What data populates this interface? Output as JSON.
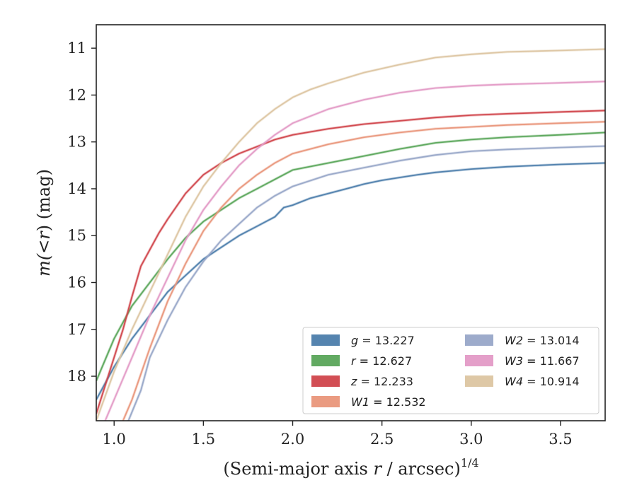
{
  "chart_data": {
    "type": "line",
    "xlabel": "(Semi-major axis r / arcsec)^{1/4}",
    "xlabel_main": "(Semi-major axis ",
    "xlabel_var": "r",
    "xlabel_rest": " / arcsec)",
    "xlabel_sup": "1/4",
    "ylabel": "m(<r) (mag)",
    "ylabel_pre": "m(<",
    "ylabel_var": "r",
    "ylabel_post": ") (mag)",
    "xlim": [
      0.9,
      3.75
    ],
    "ylim": [
      18.95,
      10.5
    ],
    "y_inverted": true,
    "grid": false,
    "xticks": [
      1.0,
      1.5,
      2.0,
      2.5,
      3.0,
      3.5
    ],
    "xtick_labels": [
      "1.0",
      "1.5",
      "2.0",
      "2.5",
      "3.0",
      "3.5"
    ],
    "yticks": [
      11,
      12,
      13,
      14,
      15,
      16,
      17,
      18
    ],
    "ytick_labels": [
      "11",
      "12",
      "13",
      "14",
      "15",
      "16",
      "17",
      "18"
    ],
    "legend_position": "lower-right",
    "series": [
      {
        "name": "g = 13.227",
        "band": "g",
        "mag": "13.227",
        "color": "#4c7dab",
        "x": [
          0.9,
          1.0,
          1.1,
          1.2,
          1.3,
          1.4,
          1.5,
          1.6,
          1.7,
          1.8,
          1.9,
          1.95,
          2.0,
          2.1,
          2.2,
          2.3,
          2.4,
          2.5,
          2.6,
          2.7,
          2.8,
          3.0,
          3.2,
          3.5,
          3.75
        ],
        "y": [
          18.5,
          17.8,
          17.2,
          16.7,
          16.2,
          15.85,
          15.5,
          15.25,
          15.0,
          14.8,
          14.6,
          14.4,
          14.35,
          14.2,
          14.1,
          14.0,
          13.9,
          13.82,
          13.76,
          13.7,
          13.65,
          13.58,
          13.53,
          13.48,
          13.45
        ]
      },
      {
        "name": "r = 12.627",
        "band": "r",
        "mag": "12.627",
        "color": "#5aa55a",
        "x": [
          0.9,
          1.0,
          1.1,
          1.2,
          1.3,
          1.4,
          1.5,
          1.6,
          1.7,
          1.8,
          1.9,
          2.0,
          2.2,
          2.4,
          2.6,
          2.8,
          3.0,
          3.2,
          3.5,
          3.75
        ],
        "y": [
          18.1,
          17.2,
          16.5,
          16.0,
          15.5,
          15.05,
          14.7,
          14.45,
          14.2,
          14.0,
          13.8,
          13.6,
          13.45,
          13.3,
          13.15,
          13.02,
          12.95,
          12.9,
          12.85,
          12.8
        ]
      },
      {
        "name": "z = 12.233",
        "band": "z",
        "mag": "12.233",
        "color": "#d0444b",
        "x": [
          0.9,
          1.0,
          1.05,
          1.1,
          1.15,
          1.2,
          1.25,
          1.3,
          1.4,
          1.5,
          1.6,
          1.7,
          1.8,
          1.9,
          2.0,
          2.2,
          2.4,
          2.6,
          2.8,
          3.0,
          3.2,
          3.5,
          3.75
        ],
        "y": [
          18.8,
          17.6,
          17.0,
          16.3,
          15.65,
          15.3,
          14.95,
          14.65,
          14.1,
          13.7,
          13.45,
          13.25,
          13.1,
          12.95,
          12.85,
          12.72,
          12.62,
          12.55,
          12.48,
          12.43,
          12.4,
          12.36,
          12.33
        ]
      },
      {
        "name": "W1 = 12.532",
        "band": "W1",
        "mag": "12.532",
        "color": "#e9967a",
        "x": [
          1.05,
          1.1,
          1.2,
          1.3,
          1.4,
          1.5,
          1.6,
          1.7,
          1.8,
          1.9,
          2.0,
          2.2,
          2.4,
          2.6,
          2.8,
          3.0,
          3.2,
          3.5,
          3.75
        ],
        "y": [
          18.95,
          18.5,
          17.4,
          16.4,
          15.6,
          14.9,
          14.4,
          14.0,
          13.7,
          13.45,
          13.25,
          13.05,
          12.9,
          12.8,
          12.72,
          12.68,
          12.64,
          12.6,
          12.57
        ]
      },
      {
        "name": "W2 = 13.014",
        "band": "W2",
        "mag": "13.014",
        "color": "#98a6c8",
        "x": [
          1.08,
          1.15,
          1.2,
          1.3,
          1.4,
          1.5,
          1.6,
          1.7,
          1.8,
          1.9,
          2.0,
          2.2,
          2.4,
          2.6,
          2.8,
          3.0,
          3.2,
          3.5,
          3.75
        ],
        "y": [
          18.95,
          18.3,
          17.6,
          16.8,
          16.1,
          15.55,
          15.1,
          14.75,
          14.4,
          14.15,
          13.95,
          13.7,
          13.55,
          13.4,
          13.28,
          13.2,
          13.16,
          13.12,
          13.09
        ]
      },
      {
        "name": "W3 = 11.667",
        "band": "W3",
        "mag": "11.667",
        "color": "#e39ac6",
        "x": [
          0.95,
          1.0,
          1.1,
          1.2,
          1.3,
          1.4,
          1.5,
          1.6,
          1.7,
          1.8,
          1.9,
          2.0,
          2.1,
          2.2,
          2.4,
          2.6,
          2.8,
          3.0,
          3.2,
          3.5,
          3.75
        ],
        "y": [
          18.95,
          18.5,
          17.6,
          16.7,
          15.9,
          15.1,
          14.45,
          13.95,
          13.5,
          13.15,
          12.85,
          12.6,
          12.45,
          12.3,
          12.1,
          11.95,
          11.85,
          11.8,
          11.77,
          11.74,
          11.71
        ]
      },
      {
        "name": "W4 = 10.914",
        "band": "W4",
        "mag": "10.914",
        "color": "#dcc5a1",
        "x": [
          0.9,
          1.0,
          1.1,
          1.2,
          1.3,
          1.4,
          1.5,
          1.6,
          1.7,
          1.8,
          1.9,
          2.0,
          2.1,
          2.2,
          2.4,
          2.6,
          2.8,
          3.0,
          3.2,
          3.5,
          3.75
        ],
        "y": [
          18.95,
          17.9,
          17.0,
          16.2,
          15.4,
          14.6,
          13.95,
          13.45,
          13.0,
          12.6,
          12.3,
          12.05,
          11.88,
          11.75,
          11.52,
          11.35,
          11.2,
          11.13,
          11.08,
          11.05,
          11.02
        ]
      }
    ]
  }
}
